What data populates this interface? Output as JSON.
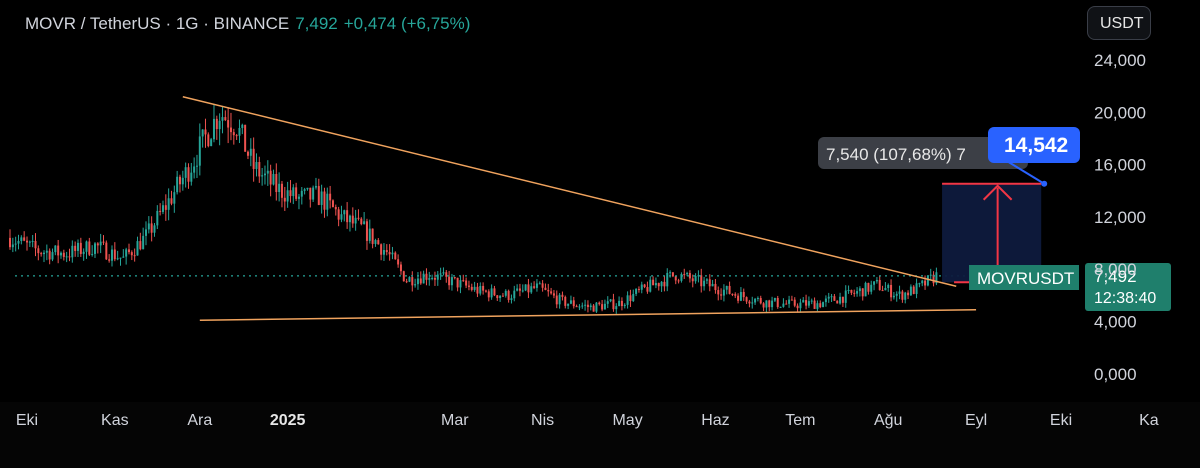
{
  "header": {
    "symbol": "MOVR / TetherUS · 1G · BINANCE",
    "price": "7,492",
    "change": "+0,474 (+6,75%)"
  },
  "currency_button": "USDT",
  "colors": {
    "background": "#000000",
    "up": "#26a69a",
    "down": "#ef5350",
    "trendline": "#f0a35e",
    "target_box": "#0e1a3d",
    "target_line": "#f23645",
    "target_badge": "#2962ff",
    "price_badge": "#1f7f6c"
  },
  "chart_data": {
    "type": "candlestick",
    "y_tick_labels": [
      "24,000",
      "20,000",
      "16,000",
      "12,000",
      "8,000",
      "4,000",
      "0,000"
    ],
    "y_ticks": [
      24,
      20,
      16,
      12,
      8,
      4,
      0
    ],
    "x_tick_labels": [
      "Eki",
      "Kas",
      "Ara",
      "2025",
      "Mar",
      "Nis",
      "May",
      "Haz",
      "Tem",
      "Ağu",
      "Eyl",
      "Eki",
      "Ka"
    ],
    "x_tick_dates": [
      "2024-10-01",
      "2024-11-01",
      "2024-12-01",
      "2025-01-01",
      "2025-03-01",
      "2025-04-01",
      "2025-05-01",
      "2025-06-01",
      "2025-07-01",
      "2025-08-01",
      "2025-09-01",
      "2025-10-01",
      "2025-11-01"
    ],
    "ylim": [
      -2,
      27
    ],
    "price_series": {
      "dates": [
        "2024-09-25",
        "2024-10-05",
        "2024-10-15",
        "2024-10-25",
        "2024-11-04",
        "2024-11-12",
        "2024-11-20",
        "2024-11-28",
        "2024-12-04",
        "2024-12-08",
        "2024-12-14",
        "2024-12-20",
        "2024-12-28",
        "2025-01-05",
        "2025-01-12",
        "2025-01-20",
        "2025-01-28",
        "2025-02-05",
        "2025-02-12",
        "2025-02-20",
        "2025-03-01",
        "2025-03-10",
        "2025-03-20",
        "2025-03-30",
        "2025-04-08",
        "2025-04-18",
        "2025-04-28",
        "2025-05-08",
        "2025-05-18",
        "2025-05-28",
        "2025-06-08",
        "2025-06-18",
        "2025-06-28",
        "2025-07-08",
        "2025-07-18",
        "2025-07-28",
        "2025-08-05",
        "2025-08-12",
        "2025-08-18"
      ],
      "close": [
        10.4,
        9.4,
        9.2,
        9.8,
        8.8,
        10.5,
        13.2,
        16.0,
        18.5,
        20.0,
        19.0,
        15.8,
        14.2,
        13.4,
        13.6,
        12.0,
        11.0,
        9.3,
        7.2,
        7.6,
        7.0,
        6.3,
        6.0,
        6.6,
        5.5,
        5.1,
        5.4,
        6.6,
        7.6,
        6.9,
        6.1,
        5.5,
        5.3,
        5.4,
        6.0,
        6.8,
        6.0,
        6.6,
        7.5
      ]
    },
    "annotations": {
      "upper_trendline": {
        "start": {
          "date": "2024-11-25",
          "price": 21.2
        },
        "end": {
          "date": "2025-08-25",
          "price": 6.7
        }
      },
      "lower_trendline": {
        "start": {
          "date": "2024-12-01",
          "price": 4.1
        },
        "end": {
          "date": "2025-09-01",
          "price": 4.9
        }
      },
      "target_range": {
        "from_date": "2025-08-20",
        "to_date": "2025-09-24",
        "low": 7.0,
        "high": 14.542
      },
      "range_label": "7,540 (107,68%) 7",
      "target_label": "14,542",
      "last_price_label": "7,492",
      "countdown_label": "12:38:40",
      "symbol_label": "MOVRUSDT",
      "last_price": 7.492
    }
  }
}
